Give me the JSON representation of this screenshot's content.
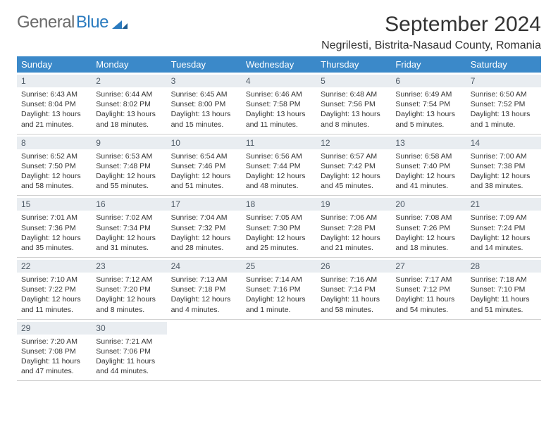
{
  "logo": {
    "text1": "General",
    "text2": "Blue"
  },
  "title": "September 2024",
  "location": "Negrilesti, Bistrita-Nasaud County, Romania",
  "colors": {
    "header_bg": "#3b89c9",
    "header_text": "#ffffff",
    "day_strip_bg": "#e9edf1",
    "day_strip_text": "#4e5a66",
    "body_text": "#333333",
    "logo_gray": "#6a6a6a",
    "logo_blue": "#2b7bbf",
    "divider": "#d0d0d0"
  },
  "weekdays": [
    "Sunday",
    "Monday",
    "Tuesday",
    "Wednesday",
    "Thursday",
    "Friday",
    "Saturday"
  ],
  "weeks": [
    [
      {
        "n": "1",
        "sr": "Sunrise: 6:43 AM",
        "ss": "Sunset: 8:04 PM",
        "d1": "Daylight: 13 hours",
        "d2": "and 21 minutes."
      },
      {
        "n": "2",
        "sr": "Sunrise: 6:44 AM",
        "ss": "Sunset: 8:02 PM",
        "d1": "Daylight: 13 hours",
        "d2": "and 18 minutes."
      },
      {
        "n": "3",
        "sr": "Sunrise: 6:45 AM",
        "ss": "Sunset: 8:00 PM",
        "d1": "Daylight: 13 hours",
        "d2": "and 15 minutes."
      },
      {
        "n": "4",
        "sr": "Sunrise: 6:46 AM",
        "ss": "Sunset: 7:58 PM",
        "d1": "Daylight: 13 hours",
        "d2": "and 11 minutes."
      },
      {
        "n": "5",
        "sr": "Sunrise: 6:48 AM",
        "ss": "Sunset: 7:56 PM",
        "d1": "Daylight: 13 hours",
        "d2": "and 8 minutes."
      },
      {
        "n": "6",
        "sr": "Sunrise: 6:49 AM",
        "ss": "Sunset: 7:54 PM",
        "d1": "Daylight: 13 hours",
        "d2": "and 5 minutes."
      },
      {
        "n": "7",
        "sr": "Sunrise: 6:50 AM",
        "ss": "Sunset: 7:52 PM",
        "d1": "Daylight: 13 hours",
        "d2": "and 1 minute."
      }
    ],
    [
      {
        "n": "8",
        "sr": "Sunrise: 6:52 AM",
        "ss": "Sunset: 7:50 PM",
        "d1": "Daylight: 12 hours",
        "d2": "and 58 minutes."
      },
      {
        "n": "9",
        "sr": "Sunrise: 6:53 AM",
        "ss": "Sunset: 7:48 PM",
        "d1": "Daylight: 12 hours",
        "d2": "and 55 minutes."
      },
      {
        "n": "10",
        "sr": "Sunrise: 6:54 AM",
        "ss": "Sunset: 7:46 PM",
        "d1": "Daylight: 12 hours",
        "d2": "and 51 minutes."
      },
      {
        "n": "11",
        "sr": "Sunrise: 6:56 AM",
        "ss": "Sunset: 7:44 PM",
        "d1": "Daylight: 12 hours",
        "d2": "and 48 minutes."
      },
      {
        "n": "12",
        "sr": "Sunrise: 6:57 AM",
        "ss": "Sunset: 7:42 PM",
        "d1": "Daylight: 12 hours",
        "d2": "and 45 minutes."
      },
      {
        "n": "13",
        "sr": "Sunrise: 6:58 AM",
        "ss": "Sunset: 7:40 PM",
        "d1": "Daylight: 12 hours",
        "d2": "and 41 minutes."
      },
      {
        "n": "14",
        "sr": "Sunrise: 7:00 AM",
        "ss": "Sunset: 7:38 PM",
        "d1": "Daylight: 12 hours",
        "d2": "and 38 minutes."
      }
    ],
    [
      {
        "n": "15",
        "sr": "Sunrise: 7:01 AM",
        "ss": "Sunset: 7:36 PM",
        "d1": "Daylight: 12 hours",
        "d2": "and 35 minutes."
      },
      {
        "n": "16",
        "sr": "Sunrise: 7:02 AM",
        "ss": "Sunset: 7:34 PM",
        "d1": "Daylight: 12 hours",
        "d2": "and 31 minutes."
      },
      {
        "n": "17",
        "sr": "Sunrise: 7:04 AM",
        "ss": "Sunset: 7:32 PM",
        "d1": "Daylight: 12 hours",
        "d2": "and 28 minutes."
      },
      {
        "n": "18",
        "sr": "Sunrise: 7:05 AM",
        "ss": "Sunset: 7:30 PM",
        "d1": "Daylight: 12 hours",
        "d2": "and 25 minutes."
      },
      {
        "n": "19",
        "sr": "Sunrise: 7:06 AM",
        "ss": "Sunset: 7:28 PM",
        "d1": "Daylight: 12 hours",
        "d2": "and 21 minutes."
      },
      {
        "n": "20",
        "sr": "Sunrise: 7:08 AM",
        "ss": "Sunset: 7:26 PM",
        "d1": "Daylight: 12 hours",
        "d2": "and 18 minutes."
      },
      {
        "n": "21",
        "sr": "Sunrise: 7:09 AM",
        "ss": "Sunset: 7:24 PM",
        "d1": "Daylight: 12 hours",
        "d2": "and 14 minutes."
      }
    ],
    [
      {
        "n": "22",
        "sr": "Sunrise: 7:10 AM",
        "ss": "Sunset: 7:22 PM",
        "d1": "Daylight: 12 hours",
        "d2": "and 11 minutes."
      },
      {
        "n": "23",
        "sr": "Sunrise: 7:12 AM",
        "ss": "Sunset: 7:20 PM",
        "d1": "Daylight: 12 hours",
        "d2": "and 8 minutes."
      },
      {
        "n": "24",
        "sr": "Sunrise: 7:13 AM",
        "ss": "Sunset: 7:18 PM",
        "d1": "Daylight: 12 hours",
        "d2": "and 4 minutes."
      },
      {
        "n": "25",
        "sr": "Sunrise: 7:14 AM",
        "ss": "Sunset: 7:16 PM",
        "d1": "Daylight: 12 hours",
        "d2": "and 1 minute."
      },
      {
        "n": "26",
        "sr": "Sunrise: 7:16 AM",
        "ss": "Sunset: 7:14 PM",
        "d1": "Daylight: 11 hours",
        "d2": "and 58 minutes."
      },
      {
        "n": "27",
        "sr": "Sunrise: 7:17 AM",
        "ss": "Sunset: 7:12 PM",
        "d1": "Daylight: 11 hours",
        "d2": "and 54 minutes."
      },
      {
        "n": "28",
        "sr": "Sunrise: 7:18 AM",
        "ss": "Sunset: 7:10 PM",
        "d1": "Daylight: 11 hours",
        "d2": "and 51 minutes."
      }
    ],
    [
      {
        "n": "29",
        "sr": "Sunrise: 7:20 AM",
        "ss": "Sunset: 7:08 PM",
        "d1": "Daylight: 11 hours",
        "d2": "and 47 minutes."
      },
      {
        "n": "30",
        "sr": "Sunrise: 7:21 AM",
        "ss": "Sunset: 7:06 PM",
        "d1": "Daylight: 11 hours",
        "d2": "and 44 minutes."
      },
      null,
      null,
      null,
      null,
      null
    ]
  ]
}
